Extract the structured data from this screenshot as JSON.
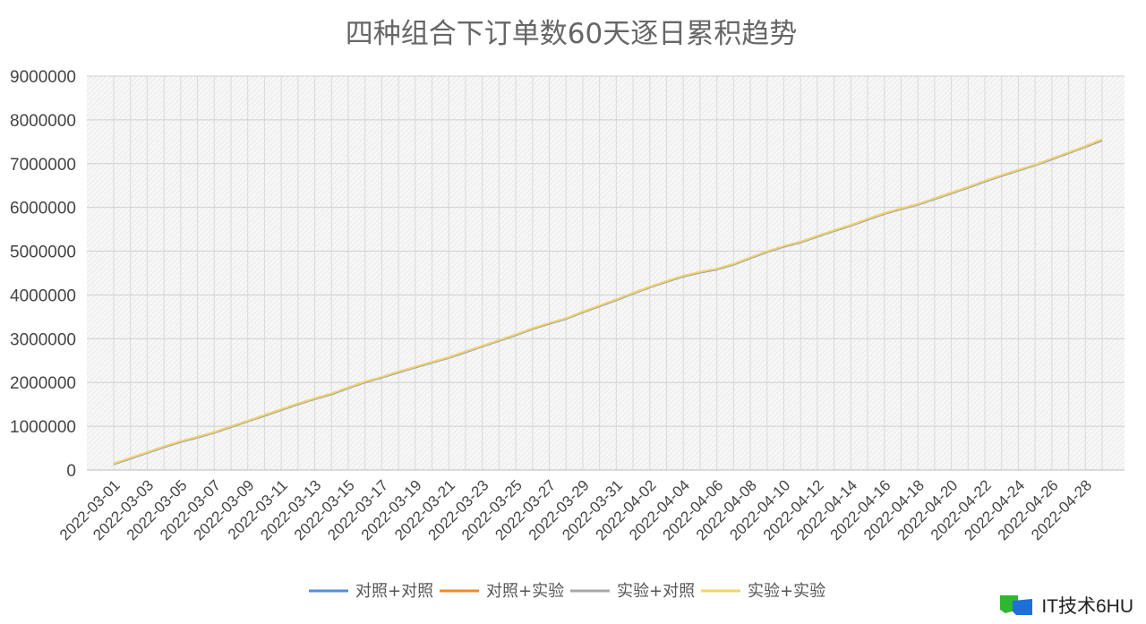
{
  "chart_data": {
    "type": "line",
    "title": "四种组合下订单数60天逐日累积趋势",
    "xlabel": "",
    "ylabel": "",
    "ylim": [
      0,
      9000000
    ],
    "yticks": [
      0,
      1000000,
      2000000,
      3000000,
      4000000,
      5000000,
      6000000,
      7000000,
      8000000,
      9000000
    ],
    "grid": true,
    "legend_position": "bottom",
    "x_tick_labels": [
      "2022-03-01",
      "2022-03-03",
      "2022-03-05",
      "2022-03-07",
      "2022-03-09",
      "2022-03-11",
      "2022-03-13",
      "2022-03-15",
      "2022-03-17",
      "2022-03-19",
      "2022-03-21",
      "2022-03-23",
      "2022-03-25",
      "2022-03-27",
      "2022-03-29",
      "2022-03-31",
      "2022-04-02",
      "2022-04-04",
      "2022-04-06",
      "2022-04-08",
      "2022-04-10",
      "2022-04-12",
      "2022-04-14",
      "2022-04-16",
      "2022-04-18",
      "2022-04-20",
      "2022-04-22",
      "2022-04-24",
      "2022-04-26",
      "2022-04-28"
    ],
    "x": [
      "2022-03-01",
      "2022-03-02",
      "2022-03-03",
      "2022-03-04",
      "2022-03-05",
      "2022-03-06",
      "2022-03-07",
      "2022-03-08",
      "2022-03-09",
      "2022-03-10",
      "2022-03-11",
      "2022-03-12",
      "2022-03-13",
      "2022-03-14",
      "2022-03-15",
      "2022-03-16",
      "2022-03-17",
      "2022-03-18",
      "2022-03-19",
      "2022-03-20",
      "2022-03-21",
      "2022-03-22",
      "2022-03-23",
      "2022-03-24",
      "2022-03-25",
      "2022-03-26",
      "2022-03-27",
      "2022-03-28",
      "2022-03-29",
      "2022-03-30",
      "2022-03-31",
      "2022-04-01",
      "2022-04-02",
      "2022-04-03",
      "2022-04-04",
      "2022-04-05",
      "2022-04-06",
      "2022-04-07",
      "2022-04-08",
      "2022-04-09",
      "2022-04-10",
      "2022-04-11",
      "2022-04-12",
      "2022-04-13",
      "2022-04-14",
      "2022-04-15",
      "2022-04-16",
      "2022-04-17",
      "2022-04-18",
      "2022-04-19",
      "2022-04-20",
      "2022-04-21",
      "2022-04-22",
      "2022-04-23",
      "2022-04-24",
      "2022-04-25",
      "2022-04-26",
      "2022-04-27",
      "2022-04-28",
      "2022-04-29"
    ],
    "series": [
      {
        "name": "对照+对照",
        "color": "#4a90d9",
        "values": [
          130000,
          260000,
          390000,
          520000,
          640000,
          740000,
          850000,
          980000,
          1110000,
          1240000,
          1370000,
          1500000,
          1620000,
          1730000,
          1870000,
          2000000,
          2110000,
          2230000,
          2340000,
          2450000,
          2560000,
          2690000,
          2820000,
          2950000,
          3080000,
          3220000,
          3340000,
          3450000,
          3600000,
          3740000,
          3880000,
          4030000,
          4170000,
          4300000,
          4420000,
          4510000,
          4580000,
          4690000,
          4840000,
          4980000,
          5100000,
          5200000,
          5330000,
          5460000,
          5580000,
          5720000,
          5850000,
          5960000,
          6060000,
          6190000,
          6320000,
          6450000,
          6590000,
          6720000,
          6840000,
          6960000,
          7100000,
          7240000,
          7380000,
          7530000
        ]
      },
      {
        "name": "对照+实验",
        "color": "#f08a24",
        "values": [
          140000,
          270000,
          400000,
          530000,
          650000,
          750000,
          860000,
          990000,
          1120000,
          1250000,
          1380000,
          1510000,
          1630000,
          1740000,
          1880000,
          2010000,
          2120000,
          2240000,
          2350000,
          2460000,
          2570000,
          2700000,
          2830000,
          2960000,
          3090000,
          3230000,
          3350000,
          3460000,
          3610000,
          3750000,
          3890000,
          4040000,
          4180000,
          4310000,
          4430000,
          4520000,
          4590000,
          4700000,
          4850000,
          4990000,
          5110000,
          5210000,
          5340000,
          5470000,
          5590000,
          5730000,
          5860000,
          5970000,
          6070000,
          6200000,
          6330000,
          6460000,
          6600000,
          6730000,
          6850000,
          6970000,
          7110000,
          7250000,
          7390000,
          7540000
        ]
      },
      {
        "name": "实验+对照",
        "color": "#a8a8a8",
        "values": [
          135000,
          265000,
          395000,
          525000,
          645000,
          745000,
          855000,
          985000,
          1115000,
          1245000,
          1375000,
          1505000,
          1625000,
          1735000,
          1875000,
          2005000,
          2115000,
          2235000,
          2345000,
          2455000,
          2565000,
          2695000,
          2825000,
          2955000,
          3085000,
          3225000,
          3345000,
          3455000,
          3605000,
          3745000,
          3885000,
          4035000,
          4175000,
          4305000,
          4425000,
          4515000,
          4585000,
          4695000,
          4845000,
          4985000,
          5105000,
          5205000,
          5335000,
          5465000,
          5585000,
          5725000,
          5855000,
          5965000,
          6065000,
          6195000,
          6325000,
          6455000,
          6595000,
          6725000,
          6845000,
          6965000,
          7105000,
          7245000,
          7385000,
          7535000
        ]
      },
      {
        "name": "实验+实验",
        "color": "#f5d36a",
        "values": [
          150000,
          280000,
          410000,
          540000,
          660000,
          760000,
          870000,
          1000000,
          1130000,
          1260000,
          1390000,
          1520000,
          1640000,
          1750000,
          1890000,
          2020000,
          2130000,
          2250000,
          2360000,
          2470000,
          2580000,
          2710000,
          2840000,
          2970000,
          3100000,
          3240000,
          3360000,
          3470000,
          3620000,
          3760000,
          3900000,
          4050000,
          4190000,
          4320000,
          4440000,
          4530000,
          4600000,
          4710000,
          4860000,
          5000000,
          5120000,
          5220000,
          5350000,
          5480000,
          5600000,
          5740000,
          5870000,
          5980000,
          6080000,
          6210000,
          6340000,
          6470000,
          6610000,
          6740000,
          6860000,
          6980000,
          7120000,
          7260000,
          7400000,
          7560000
        ]
      }
    ]
  },
  "watermark": {
    "text": "IT技术6HU",
    "logo_icon": "green-blue-flag-logo"
  }
}
